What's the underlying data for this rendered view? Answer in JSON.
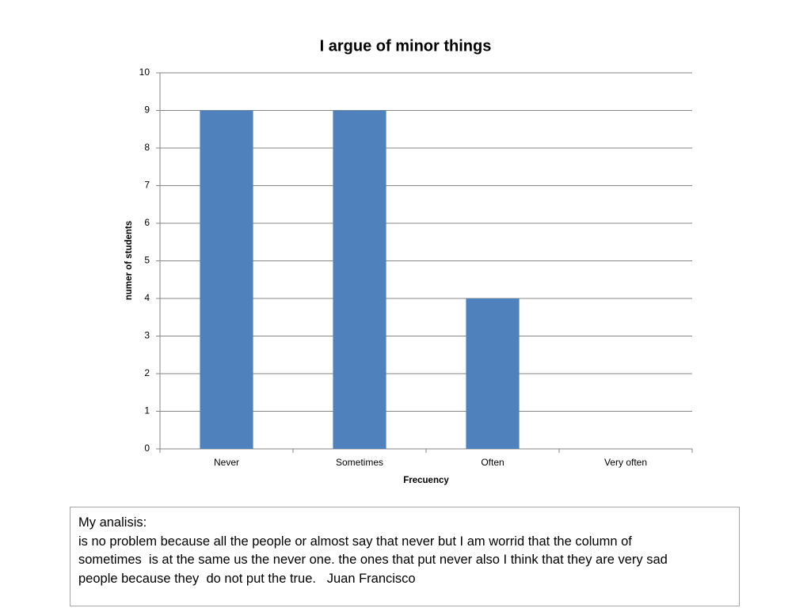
{
  "chart_data": {
    "type": "bar",
    "title": "I argue of minor things",
    "x_label": "Frecuency",
    "y_label": "numer of students",
    "categories": [
      "Never",
      "Sometimes",
      "Often",
      "Very often"
    ],
    "values": [
      9,
      9,
      4,
      0
    ],
    "color": "#4f81bd",
    "ylim": [
      0,
      10
    ],
    "yticks": [
      0,
      1,
      2,
      3,
      4,
      5,
      6,
      7,
      8,
      9,
      10
    ],
    "grid": true
  },
  "note": {
    "heading": "My analisis:",
    "lines": [
      "is no problem because all the people or almost say that never but I am worrid that the column of",
      "sometimes  is at the same us the never one. the ones that put never also I think that they are very sad",
      "people because they  do not put the true.   Juan Francisco"
    ]
  }
}
